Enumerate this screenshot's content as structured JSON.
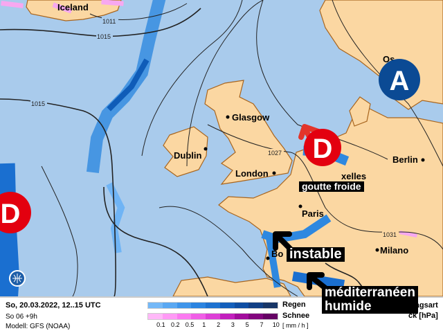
{
  "map": {
    "colors": {
      "sea": "#a9cbec",
      "land": "#fbd7a2",
      "coast": "#a8651e",
      "rain_light": "#6fb4f5",
      "rain_mid": "#2e88e0",
      "rain_dark": "#0f5cb8",
      "snow": "#f7a8f0"
    },
    "regions": [
      {
        "name": "Iceland"
      }
    ],
    "cities": [
      {
        "name": "Glasgow"
      },
      {
        "name": "Dublin"
      },
      {
        "name": "London"
      },
      {
        "name": "xelles"
      },
      {
        "name": "Berlin"
      },
      {
        "name": "Paris"
      },
      {
        "name": "Milano"
      },
      {
        "name": "Bo"
      },
      {
        "name": "Os"
      }
    ],
    "isobar_labels": [
      "1011",
      "1015",
      "1015",
      "1027",
      "1031"
    ],
    "pressure_systems": [
      {
        "type": "low",
        "label": "D",
        "color": "#e3000f"
      },
      {
        "type": "low",
        "label": "D",
        "color": "#e3000f"
      },
      {
        "type": "high",
        "label": "A",
        "color": "#0b4a94"
      }
    ],
    "annotations": [
      "goutte froide",
      "instable",
      "méditerranéen\nhumide"
    ],
    "logo_icon": "globe-icon"
  },
  "legend": {
    "date": "So, 20.03.2022, 12..15 UTC",
    "run": "So 06 +9h",
    "model": "Modell: GFS (NOAA)",
    "rain_label": "Regen",
    "snow_label": "Schnee",
    "unit": "[ mm / h ]",
    "ticks": [
      "0.1",
      "0.2",
      "0.5",
      "1",
      "2",
      "3",
      "5",
      "7",
      "10"
    ],
    "rain_colors": [
      "#74b8f7",
      "#5aa8f2",
      "#3f95ea",
      "#2b84e0",
      "#1d72d0",
      "#135fbb",
      "#0e4ea3",
      "#113f85",
      "#173566"
    ],
    "snow_colors": [
      "#ffb8f8",
      "#ff9af5",
      "#fb7af0",
      "#f05ee6",
      "#dd3fd6",
      "#c21fbd",
      "#a10c9c",
      "#82057e",
      "#650264"
    ],
    "type_label": "hlagsart",
    "pressure_label": "ck [hPa]"
  }
}
